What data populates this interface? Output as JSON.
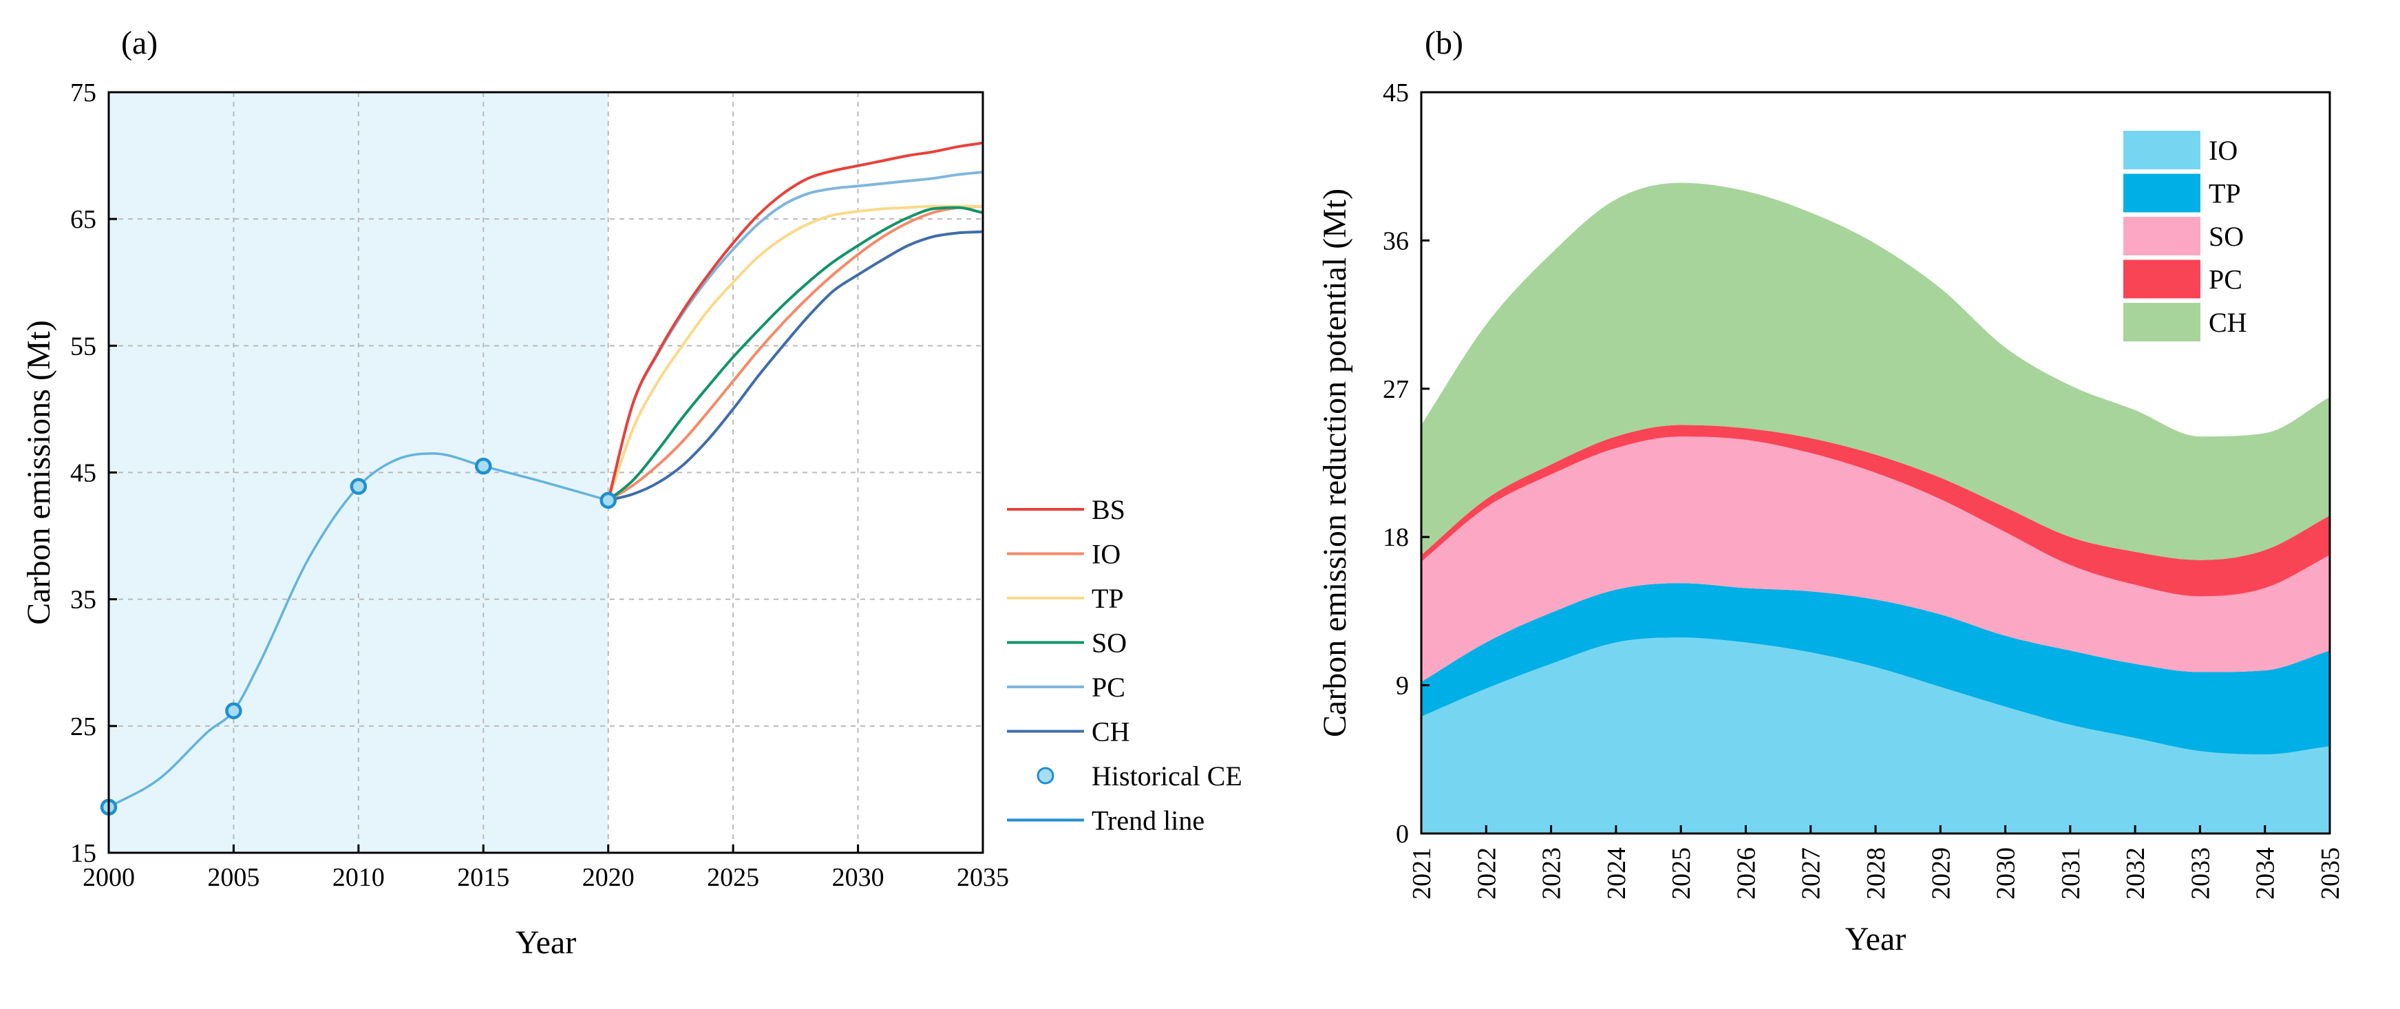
{
  "chart_data": [
    {
      "panel": "(a)",
      "type": "line",
      "xlabel": "Year",
      "ylabel": "Carbon emissions (Mt)",
      "xlim": [
        2000,
        2035
      ],
      "ylim": [
        15,
        75
      ],
      "xticks": [
        "2000",
        "2005",
        "2010",
        "2015",
        "2020",
        "2025",
        "2030",
        "2035"
      ],
      "yticks": [
        "15",
        "25",
        "35",
        "45",
        "55",
        "65",
        "75"
      ],
      "grid": true,
      "historical_shading": [
        2000,
        2020
      ],
      "legend_position": "right",
      "historical": {
        "name": "Historical CE",
        "x": [
          2000,
          2005,
          2010,
          2015,
          2020
        ],
        "y": [
          18.6,
          26.2,
          43.9,
          45.5,
          42.8
        ]
      },
      "trend": {
        "name": "Trend line",
        "x": [
          2000,
          2002,
          2004,
          2005,
          2006,
          2008,
          2010,
          2011.5,
          2013,
          2015,
          2017.5,
          2020
        ],
        "y": [
          18.6,
          20.8,
          24.6,
          26.2,
          29.8,
          38.2,
          43.9,
          46.0,
          46.5,
          45.5,
          44.2,
          42.8
        ]
      },
      "series": [
        {
          "name": "BS",
          "color": "#e8413b",
          "x": [
            2020,
            2021,
            2022,
            2023,
            2024,
            2025,
            2026,
            2027,
            2028,
            2029,
            2030,
            2031,
            2032,
            2033,
            2034,
            2035
          ],
          "y": [
            42.8,
            50.5,
            54.5,
            57.8,
            60.6,
            63.1,
            65.3,
            67.0,
            68.2,
            68.8,
            69.2,
            69.6,
            70.0,
            70.3,
            70.7,
            71.0
          ]
        },
        {
          "name": "IO",
          "color": "#f48a6a",
          "x": [
            2020,
            2021,
            2022,
            2023,
            2024,
            2025,
            2026,
            2027,
            2028,
            2029,
            2030,
            2031,
            2032,
            2033,
            2034,
            2035
          ],
          "y": [
            42.8,
            44.0,
            45.6,
            47.5,
            49.8,
            52.2,
            54.6,
            56.8,
            58.8,
            60.6,
            62.2,
            63.6,
            64.7,
            65.5,
            65.9,
            66.0
          ]
        },
        {
          "name": "TP",
          "color": "#fad98a",
          "x": [
            2020,
            2021,
            2022,
            2023,
            2024,
            2025,
            2026,
            2027,
            2028,
            2029,
            2030,
            2031,
            2032,
            2033,
            2034,
            2035
          ],
          "y": [
            42.8,
            48.5,
            52.2,
            55.1,
            57.8,
            60.0,
            62.0,
            63.5,
            64.6,
            65.3,
            65.6,
            65.8,
            65.9,
            66.0,
            66.0,
            66.0
          ]
        },
        {
          "name": "SO",
          "color": "#12946b",
          "x": [
            2020,
            2021,
            2022,
            2023,
            2024,
            2025,
            2026,
            2027,
            2028,
            2029,
            2030,
            2031,
            2032,
            2033,
            2034,
            2035
          ],
          "y": [
            42.8,
            44.4,
            46.8,
            49.4,
            51.8,
            54.1,
            56.2,
            58.2,
            60.0,
            61.6,
            62.9,
            64.1,
            65.1,
            65.8,
            65.9,
            65.5
          ]
        },
        {
          "name": "PC",
          "color": "#7fb6dd",
          "x": [
            2020,
            2021,
            2022,
            2023,
            2024,
            2025,
            2026,
            2027,
            2028,
            2029,
            2030,
            2031,
            2032,
            2033,
            2034,
            2035
          ],
          "y": [
            42.8,
            50.5,
            54.4,
            57.6,
            60.3,
            62.6,
            64.6,
            66.1,
            67.0,
            67.4,
            67.6,
            67.8,
            68.0,
            68.2,
            68.5,
            68.7
          ]
        },
        {
          "name": "CH",
          "color": "#3f6ea9",
          "x": [
            2020,
            2021,
            2022,
            2023,
            2024,
            2025,
            2026,
            2027,
            2028,
            2029,
            2030,
            2031,
            2032,
            2033,
            2034,
            2035
          ],
          "y": [
            42.8,
            43.3,
            44.2,
            45.6,
            47.6,
            50.0,
            52.6,
            55.0,
            57.3,
            59.3,
            60.6,
            61.8,
            62.9,
            63.6,
            63.9,
            64.0
          ]
        }
      ]
    },
    {
      "panel": "(b)",
      "type": "area",
      "stacked": true,
      "xlabel": "Year",
      "ylabel": "Carbon emission reduction potential (Mt)",
      "xlim": [
        2021,
        2035
      ],
      "ylim": [
        0,
        45
      ],
      "categories": [
        "2021",
        "2022",
        "2023",
        "2024",
        "2025",
        "2026",
        "2027",
        "2028",
        "2029",
        "2030",
        "2031",
        "2032",
        "2033",
        "2034",
        "2035"
      ],
      "yticks": [
        "0",
        "9",
        "18",
        "27",
        "36",
        "45"
      ],
      "legend_position": "top-right",
      "series": [
        {
          "name": "IO",
          "color": "#76d6f2",
          "values": [
            7.1,
            8.8,
            10.3,
            11.6,
            11.9,
            11.6,
            11.0,
            10.1,
            8.9,
            7.7,
            6.6,
            5.8,
            5.0,
            4.8,
            5.3
          ]
        },
        {
          "name": "TP",
          "color": "#00afe5",
          "values": [
            2.1,
            2.8,
            3.1,
            3.2,
            3.3,
            3.3,
            3.7,
            4.1,
            4.4,
            4.3,
            4.5,
            4.5,
            4.8,
            5.1,
            5.8
          ]
        },
        {
          "name": "SO",
          "color": "#fca7c4",
          "values": [
            7.3,
            8.2,
            8.4,
            8.6,
            8.9,
            9.0,
            8.4,
            7.7,
            7.0,
            6.3,
            5.2,
            4.8,
            4.6,
            5.0,
            5.8
          ]
        },
        {
          "name": "PC",
          "color": "#f94455",
          "values": [
            0.4,
            0.5,
            0.6,
            0.7,
            0.7,
            0.7,
            0.9,
            1.1,
            1.3,
            1.5,
            1.7,
            2.0,
            2.2,
            2.3,
            2.4
          ]
        },
        {
          "name": "CH",
          "color": "#a7d49a",
          "values": [
            7.9,
            10.6,
            12.8,
            14.4,
            14.7,
            14.4,
            13.7,
            12.8,
            11.5,
            9.7,
            9.2,
            8.6,
            7.5,
            7.1,
            7.2
          ]
        }
      ]
    }
  ]
}
